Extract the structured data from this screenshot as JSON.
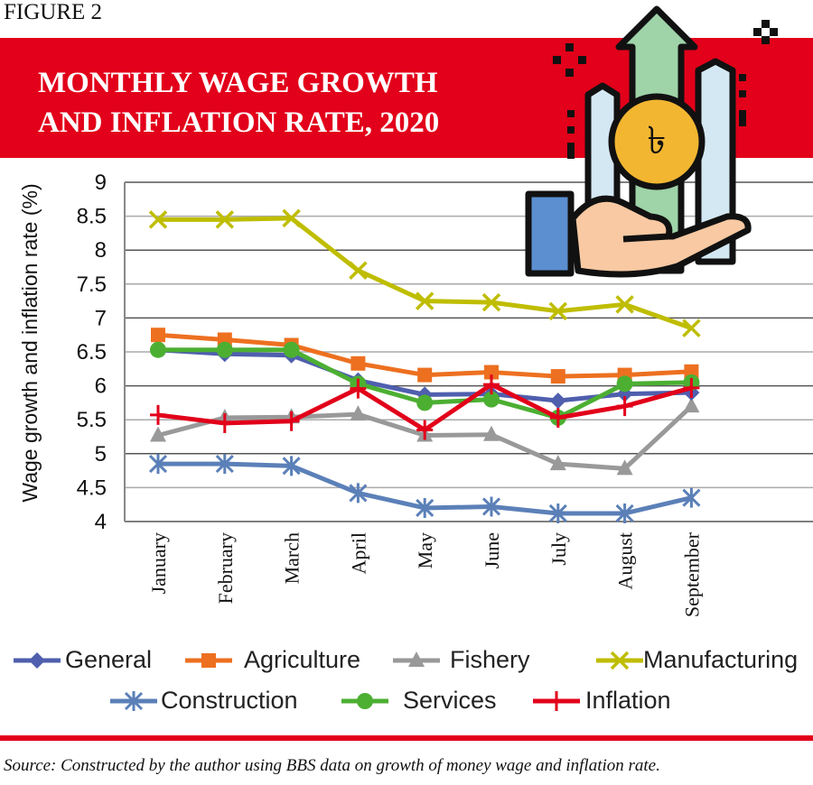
{
  "figure_label": "FIGURE 2",
  "title_line1": "MONTHLY WAGE GROWTH",
  "title_line2": "AND INFLATION RATE, 2020",
  "source": "Source: Constructed by the author using BBS data on growth of money wage and inflation rate.",
  "illustration": {
    "coin_symbol": "৳",
    "icon": "hand-holding-taka-growth-icon"
  },
  "chart_data": {
    "type": "line",
    "title": "MONTHLY WAGE GROWTH AND INFLATION RATE, 2020",
    "xlabel": "",
    "ylabel": "Wage growth and inflation rate (%)",
    "ylim": [
      4,
      9
    ],
    "yticks": [
      "4",
      "4.5",
      "5",
      "5.5",
      "6",
      "6.5",
      "7",
      "7.5",
      "8",
      "8.5",
      "9"
    ],
    "grid": true,
    "legend_position": "bottom",
    "categories": [
      "January",
      "February",
      "March",
      "April",
      "May",
      "June",
      "July",
      "August",
      "September"
    ],
    "series": [
      {
        "name": "General",
        "color": "#4f5fae",
        "marker": "diamond",
        "values": [
          6.53,
          6.47,
          6.45,
          6.08,
          5.87,
          5.88,
          5.78,
          5.88,
          5.9
        ]
      },
      {
        "name": "Agriculture",
        "color": "#ed7020",
        "marker": "square",
        "values": [
          6.75,
          6.68,
          6.6,
          6.33,
          6.16,
          6.2,
          6.14,
          6.16,
          6.21
        ]
      },
      {
        "name": "Fishery",
        "color": "#999999",
        "marker": "triangle",
        "values": [
          5.27,
          5.53,
          5.54,
          5.58,
          5.27,
          5.28,
          4.85,
          4.78,
          5.7
        ]
      },
      {
        "name": "Manufacturing",
        "color": "#bfbd00",
        "marker": "x",
        "values": [
          8.45,
          8.45,
          8.47,
          7.7,
          7.25,
          7.23,
          7.1,
          7.2,
          6.85
        ]
      },
      {
        "name": "Construction",
        "color": "#5b80b8",
        "marker": "asterisk",
        "values": [
          4.85,
          4.85,
          4.82,
          4.42,
          4.2,
          4.22,
          4.12,
          4.12,
          4.35
        ]
      },
      {
        "name": "Services",
        "color": "#4caf32",
        "marker": "circle",
        "values": [
          6.53,
          6.53,
          6.53,
          6.03,
          5.75,
          5.8,
          5.53,
          6.03,
          6.05
        ]
      },
      {
        "name": "Inflation",
        "color": "#e2001a",
        "marker": "plus",
        "values": [
          5.57,
          5.45,
          5.48,
          5.96,
          5.35,
          6.02,
          5.53,
          5.7,
          5.97
        ]
      }
    ]
  }
}
